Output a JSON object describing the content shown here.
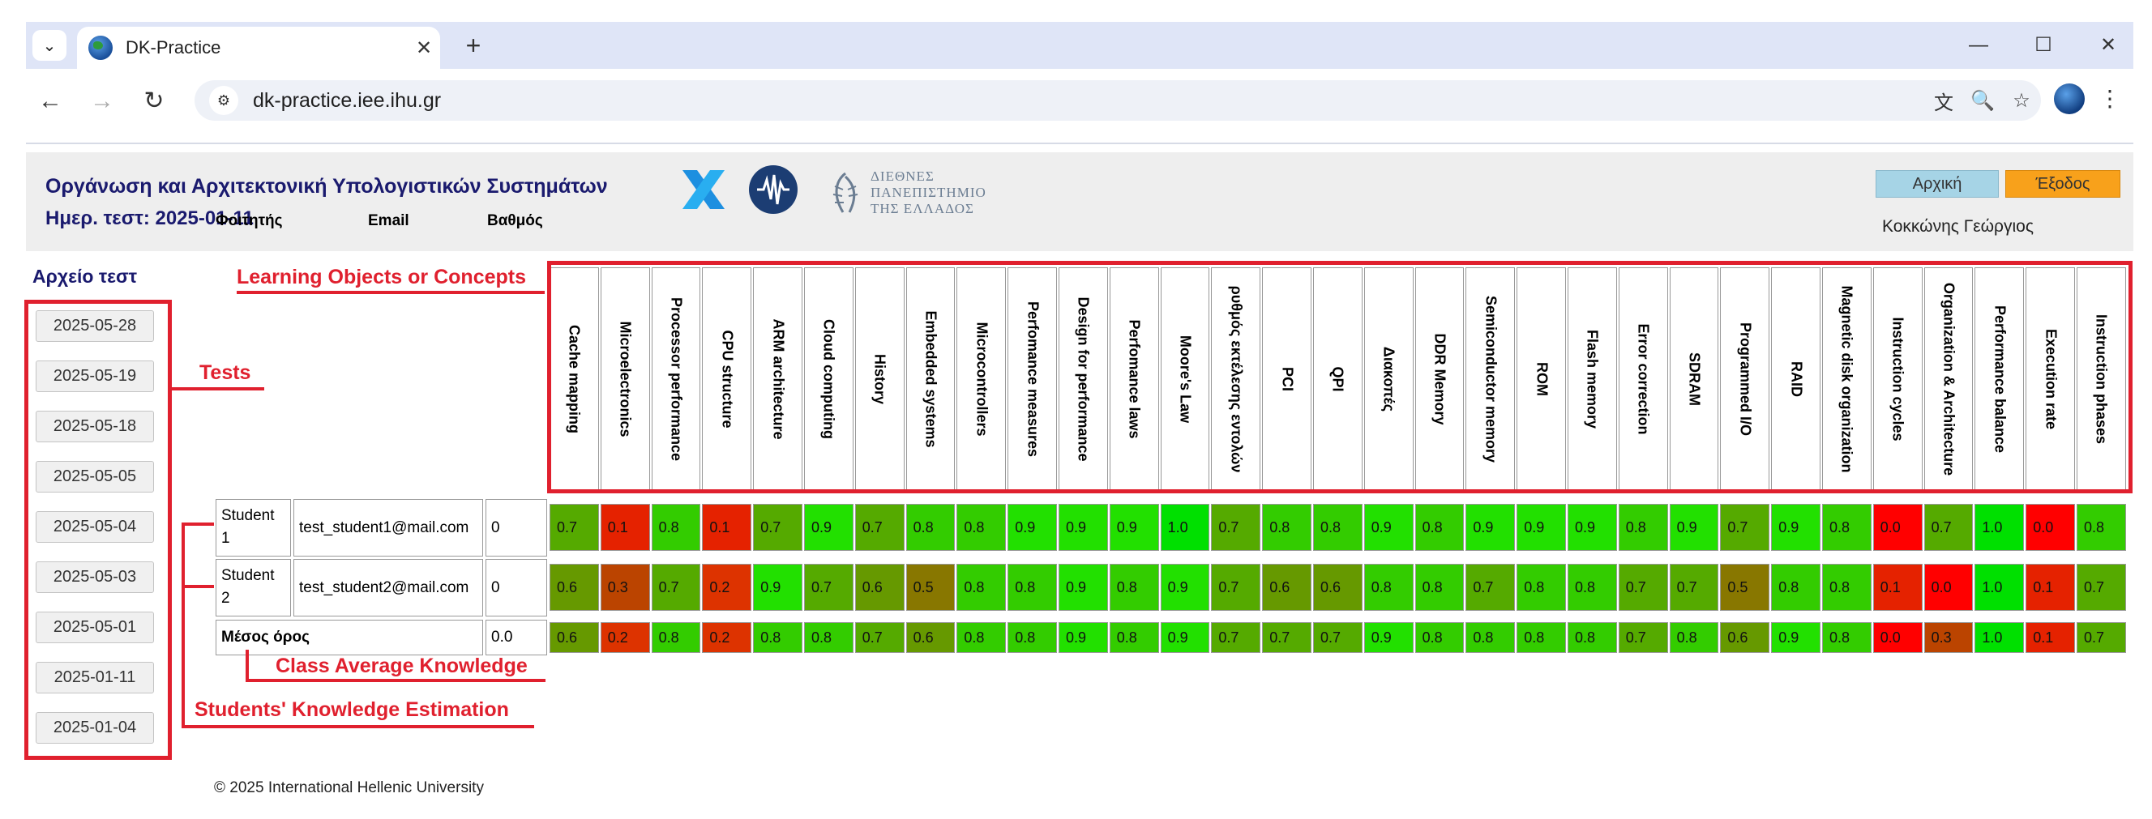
{
  "browser": {
    "tab_title": "DK-Practice",
    "url": "dk-practice.iee.ihu.gr"
  },
  "header": {
    "course_title": "Οργάνωση και Αρχιτεκτονική Υπολογιστικών Συστημάτων",
    "test_date": "Ημερ. τεστ: 2025-01-11",
    "ihu_logo_lines": [
      "ΔΙΕΘΝΕΣ",
      "ΠΑΝΕΠΙΣΤΗΜΙΟ",
      "ΤΗΣ ΕΛΛΑΔΟΣ"
    ],
    "home_label": "Αρχική",
    "logout_label": "Έξοδος",
    "user_name": "Κοκκώνης Γεώργιος"
  },
  "sidebar": {
    "title": "Αρχείο τεστ",
    "tests": [
      "2025-05-28",
      "2025-05-19",
      "2025-05-18",
      "2025-05-05",
      "2025-05-04",
      "2025-05-03",
      "2025-05-01",
      "2025-01-11",
      "2025-01-04"
    ]
  },
  "annotations": {
    "concepts": "Learning Objects or Concepts",
    "tests": "Tests",
    "average": "Class Average Knowledge",
    "students": "Students' Knowledge Estimation"
  },
  "table": {
    "headers": {
      "student": "Φοιτητής",
      "email": "Email",
      "grade": "Βαθμός"
    },
    "concepts": [
      "Cache mapping",
      "Microelectronics",
      "Processor performance",
      "CPU structure",
      "ARM architecture",
      "Cloud computing",
      "History",
      "Embedded systems",
      "Microcontrollers",
      "Perfomance measures",
      "Design for performance",
      "Perfomance laws",
      "Moore's Law",
      "ρυθμός εκτέλεσης εντολών",
      "PCI",
      "QPI",
      "Διακοπές",
      "DDR Memory",
      "Semiconductor memory",
      "ROM",
      "Flash memory",
      "Error correction",
      "SDRAM",
      "Programmed I/O",
      "RAID",
      "Magnetic disk organization",
      "Instruction cycles",
      "Organization & Architecture",
      "Performance balance",
      "Execution rate",
      "Instruction phases"
    ],
    "rows": [
      {
        "student": "Student 1",
        "email": "test_student1@mail.com",
        "grade": "0",
        "values": [
          "0.7",
          "0.1",
          "0.8",
          "0.1",
          "0.7",
          "0.9",
          "0.7",
          "0.8",
          "0.8",
          "0.9",
          "0.9",
          "0.9",
          "1.0",
          "0.7",
          "0.8",
          "0.8",
          "0.9",
          "0.8",
          "0.9",
          "0.9",
          "0.9",
          "0.8",
          "0.9",
          "0.7",
          "0.9",
          "0.8",
          "0.0",
          "0.7",
          "1.0",
          "0.0",
          "0.8"
        ]
      },
      {
        "student": "Student 2",
        "email": "test_student2@mail.com",
        "grade": "0",
        "values": [
          "0.6",
          "0.3",
          "0.7",
          "0.2",
          "0.9",
          "0.7",
          "0.6",
          "0.5",
          "0.8",
          "0.8",
          "0.9",
          "0.8",
          "0.9",
          "0.7",
          "0.6",
          "0.6",
          "0.8",
          "0.8",
          "0.7",
          "0.8",
          "0.8",
          "0.7",
          "0.7",
          "0.5",
          "0.8",
          "0.8",
          "0.1",
          "0.0",
          "1.0",
          "0.1",
          "0.7"
        ]
      }
    ],
    "average": {
      "label": "Μέσος όρος",
      "grade": "0.0",
      "values": [
        "0.6",
        "0.2",
        "0.8",
        "0.2",
        "0.8",
        "0.8",
        "0.7",
        "0.6",
        "0.8",
        "0.8",
        "0.9",
        "0.8",
        "0.9",
        "0.7",
        "0.7",
        "0.7",
        "0.9",
        "0.8",
        "0.8",
        "0.8",
        "0.8",
        "0.7",
        "0.8",
        "0.6",
        "0.9",
        "0.8",
        "0.0",
        "0.3",
        "1.0",
        "0.1",
        "0.7"
      ]
    }
  },
  "footer": {
    "copyright": "© 2025 International Hellenic University"
  }
}
